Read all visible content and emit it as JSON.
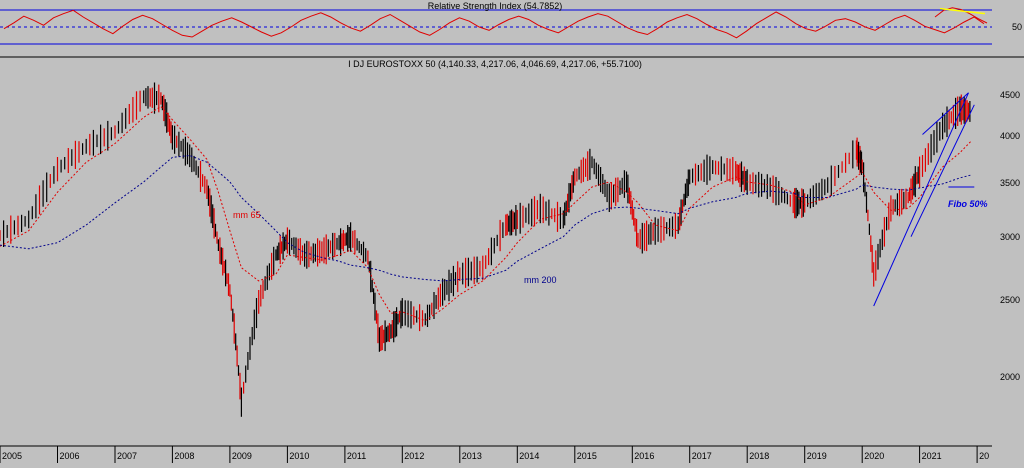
{
  "chart_data": [
    {
      "type": "line",
      "title": "Relative Strength Index (54.7852)",
      "y_tick_labels": [
        "50"
      ],
      "y_ticks": [
        50
      ],
      "ylim": [
        20,
        80
      ],
      "overbought_level": 70,
      "midline_level": 50,
      "oversold_level": 30,
      "series": [
        {
          "values": [
            48,
            55,
            63,
            58,
            52,
            61,
            66,
            70,
            62,
            55,
            48,
            42,
            51,
            59,
            64,
            60,
            53,
            46,
            40,
            38,
            45,
            52,
            57,
            61,
            56,
            50,
            44,
            39,
            43,
            50,
            58,
            63,
            67,
            62,
            55,
            49,
            45,
            52,
            60,
            65,
            58,
            51,
            44,
            40,
            47,
            55,
            61,
            57,
            50,
            46,
            53,
            59,
            63,
            59,
            52,
            47,
            43,
            50,
            57,
            62,
            66,
            63,
            56,
            49,
            44,
            41,
            48,
            56,
            61,
            65,
            60,
            53,
            47,
            43,
            37,
            45,
            54,
            61,
            68,
            62,
            54,
            48,
            45,
            51,
            58,
            60,
            56,
            50,
            46,
            53,
            60,
            64,
            58,
            51,
            47,
            43,
            49,
            56,
            62,
            54
          ]
        },
        {
          "values": [
            62,
            70,
            73,
            71,
            66,
            60,
            54.8
          ]
        }
      ],
      "colors": {
        "rsi": "#e00000",
        "level_lines": "#0000e0",
        "trend": "#ffff00"
      }
    },
    {
      "type": "line",
      "title": "I DJ EUROSTOXX 50 (4,140.33, 4,217.06, 4,046.69, 4,217.06, +55.7100)",
      "x_tick_labels": [
        "2005",
        "2006",
        "2007",
        "2008",
        "2009",
        "2010",
        "2011",
        "2012",
        "2013",
        "2014",
        "2015",
        "2016",
        "2017",
        "2018",
        "2019",
        "2020",
        "2021",
        "20"
      ],
      "y_tick_labels": [
        "4500",
        "4000",
        "3500",
        "3000",
        "2500",
        "2000"
      ],
      "y_ticks": [
        4500,
        4000,
        3500,
        3000,
        2500,
        2000
      ],
      "ylim": [
        1650,
        4750
      ],
      "y_scale": "log",
      "grid": false,
      "x": [
        2005.0,
        2005.5,
        2006.0,
        2006.5,
        2007.0,
        2007.5,
        2007.8,
        2008.0,
        2008.3,
        2008.6,
        2008.8,
        2009.0,
        2009.2,
        2009.5,
        2009.8,
        2010.0,
        2010.3,
        2010.6,
        2010.9,
        2011.1,
        2011.4,
        2011.6,
        2011.8,
        2012.0,
        2012.4,
        2012.7,
        2013.0,
        2013.4,
        2013.8,
        2014.0,
        2014.4,
        2014.8,
        2015.0,
        2015.3,
        2015.6,
        2015.9,
        2016.1,
        2016.4,
        2016.8,
        2017.0,
        2017.4,
        2017.8,
        2018.0,
        2018.4,
        2018.8,
        2019.0,
        2019.4,
        2019.9,
        2020.0,
        2020.2,
        2020.5,
        2020.8,
        2021.0,
        2021.4,
        2021.7,
        2021.9
      ],
      "series": [
        {
          "name": "",
          "values": [
            2960,
            3100,
            3580,
            3820,
            3980,
            4400,
            4380,
            3920,
            3720,
            3380,
            2880,
            2530,
            1840,
            2450,
            2800,
            2920,
            2800,
            2830,
            2900,
            2950,
            2780,
            2200,
            2250,
            2380,
            2330,
            2520,
            2650,
            2700,
            3050,
            3100,
            3200,
            3100,
            3500,
            3650,
            3300,
            3450,
            2920,
            3000,
            3050,
            3500,
            3600,
            3560,
            3450,
            3400,
            3250,
            3250,
            3420,
            3780,
            3620,
            2650,
            3200,
            3300,
            3550,
            4050,
            4250,
            4217
          ]
        },
        {
          "name": "mm 65",
          "values": [
            2870,
            3000,
            3350,
            3650,
            3850,
            4150,
            4280,
            4120,
            3900,
            3680,
            3350,
            3000,
            2700,
            2600,
            2650,
            2800,
            2780,
            2760,
            2800,
            2840,
            2700,
            2500,
            2370,
            2380,
            2320,
            2400,
            2500,
            2600,
            2780,
            2900,
            3100,
            3150,
            3250,
            3400,
            3450,
            3350,
            3250,
            3050,
            3000,
            3200,
            3400,
            3500,
            3450,
            3420,
            3350,
            3230,
            3300,
            3500,
            3550,
            3350,
            3180,
            3200,
            3300,
            3600,
            3750,
            3880
          ]
        },
        {
          "name": "mm 200",
          "values": [
            2880,
            2850,
            2900,
            3050,
            3250,
            3450,
            3600,
            3700,
            3720,
            3650,
            3550,
            3450,
            3300,
            3150,
            3000,
            2900,
            2820,
            2780,
            2750,
            2720,
            2700,
            2680,
            2650,
            2630,
            2610,
            2600,
            2610,
            2620,
            2680,
            2750,
            2850,
            2950,
            3050,
            3150,
            3200,
            3210,
            3200,
            3180,
            3150,
            3200,
            3260,
            3300,
            3340,
            3360,
            3340,
            3300,
            3300,
            3380,
            3420,
            3400,
            3380,
            3370,
            3390,
            3430,
            3490,
            3520
          ]
        }
      ],
      "annotations": [
        "mm 65",
        "mm 200",
        "Fibo 50%"
      ],
      "fibo_level": 3400,
      "colors": {
        "price": "#000000",
        "mm65": "#e00000",
        "mm200": "#00008b",
        "trendlines": "#0000e0",
        "fibo": "#0000e0"
      }
    }
  ]
}
